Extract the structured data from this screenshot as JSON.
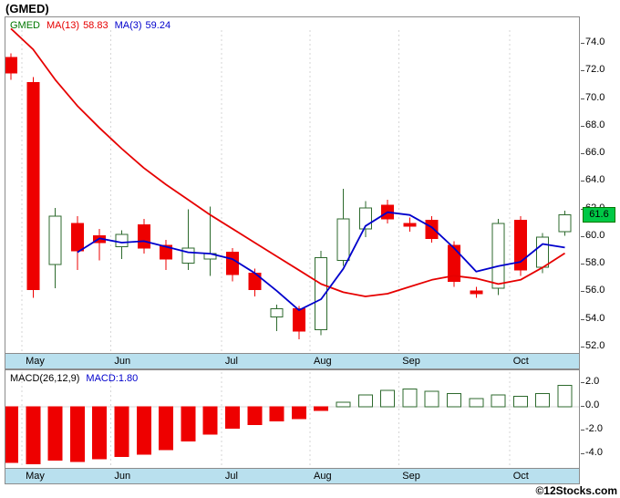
{
  "header": {
    "title": "(GMED)"
  },
  "legend": {
    "symbol": "GMED",
    "symbol_color": "#007700",
    "ma13_label": "MA(13)",
    "ma13_value": "58.83",
    "ma13_color": "#e60000",
    "ma3_label": "MA(3)",
    "ma3_value": "59.24",
    "ma3_color": "#0000cc"
  },
  "macd_legend": {
    "label": "MACD(26,12,9)",
    "label_color": "#000000",
    "value_label": "MACD:1.80",
    "value_color": "#0000cc"
  },
  "footer": {
    "copyright": "©12Stocks.com"
  },
  "band_color": "#b9e0ee",
  "chart_data": [
    {
      "type": "candlestick",
      "title": "(GMED)",
      "ylabel": "Price",
      "ylim": [
        51.5,
        75.5
      ],
      "y_ticks": [
        74,
        72,
        70,
        68,
        66,
        64,
        62,
        60,
        58,
        56,
        54,
        52
      ],
      "grid": "vertical-dashed-month-boundaries",
      "legend_position": "top-left",
      "last_price": 61.6,
      "last_price_label": "61.6",
      "badge_color": "#00c846",
      "up_color": "#2d6a2d",
      "down_color": "#ee0000",
      "months": [
        {
          "label": "May",
          "start_index": 1
        },
        {
          "label": "Jun",
          "start_index": 5
        },
        {
          "label": "Jul",
          "start_index": 10
        },
        {
          "label": "Aug",
          "start_index": 14
        },
        {
          "label": "Sep",
          "start_index": 18
        },
        {
          "label": "Oct",
          "start_index": 23
        }
      ],
      "candles": [
        {
          "o": 73.0,
          "h": 73.3,
          "l": 71.4,
          "c": 71.9,
          "dir": "down"
        },
        {
          "o": 71.2,
          "h": 71.6,
          "l": 55.6,
          "c": 56.2,
          "dir": "down"
        },
        {
          "o": 58.0,
          "h": 62.1,
          "l": 56.3,
          "c": 61.5,
          "dir": "up"
        },
        {
          "o": 61.0,
          "h": 61.5,
          "l": 57.6,
          "c": 59.0,
          "dir": "down"
        },
        {
          "o": 60.1,
          "h": 60.6,
          "l": 58.3,
          "c": 59.6,
          "dir": "down"
        },
        {
          "o": 59.3,
          "h": 60.5,
          "l": 58.4,
          "c": 60.2,
          "dir": "up"
        },
        {
          "o": 60.9,
          "h": 61.3,
          "l": 58.8,
          "c": 59.2,
          "dir": "down"
        },
        {
          "o": 59.4,
          "h": 59.8,
          "l": 57.6,
          "c": 58.4,
          "dir": "down"
        },
        {
          "o": 58.1,
          "h": 62.0,
          "l": 57.6,
          "c": 59.2,
          "dir": "up"
        },
        {
          "o": 58.4,
          "h": 62.2,
          "l": 57.2,
          "c": 58.8,
          "dir": "up"
        },
        {
          "o": 58.9,
          "h": 59.2,
          "l": 56.8,
          "c": 57.3,
          "dir": "down"
        },
        {
          "o": 57.4,
          "h": 57.7,
          "l": 55.7,
          "c": 56.2,
          "dir": "down"
        },
        {
          "o": 54.2,
          "h": 55.1,
          "l": 53.2,
          "c": 54.8,
          "dir": "up"
        },
        {
          "o": 54.8,
          "h": 55.0,
          "l": 52.6,
          "c": 53.2,
          "dir": "down"
        },
        {
          "o": 53.3,
          "h": 59.0,
          "l": 52.9,
          "c": 58.5,
          "dir": "up"
        },
        {
          "o": 58.3,
          "h": 63.5,
          "l": 57.9,
          "c": 61.3,
          "dir": "up"
        },
        {
          "o": 60.6,
          "h": 62.6,
          "l": 60.0,
          "c": 62.1,
          "dir": "up"
        },
        {
          "o": 62.3,
          "h": 62.7,
          "l": 61.0,
          "c": 61.3,
          "dir": "down"
        },
        {
          "o": 61.0,
          "h": 61.4,
          "l": 60.4,
          "c": 60.8,
          "dir": "down"
        },
        {
          "o": 61.2,
          "h": 61.5,
          "l": 59.6,
          "c": 59.9,
          "dir": "down"
        },
        {
          "o": 59.4,
          "h": 59.7,
          "l": 56.4,
          "c": 56.8,
          "dir": "down"
        },
        {
          "o": 56.1,
          "h": 56.4,
          "l": 55.6,
          "c": 55.9,
          "dir": "down"
        },
        {
          "o": 56.3,
          "h": 61.3,
          "l": 55.8,
          "c": 61.0,
          "dir": "up"
        },
        {
          "o": 61.2,
          "h": 61.5,
          "l": 57.2,
          "c": 57.6,
          "dir": "down"
        },
        {
          "o": 57.8,
          "h": 60.3,
          "l": 57.4,
          "c": 60.0,
          "dir": "up"
        },
        {
          "o": 60.4,
          "h": 61.9,
          "l": 60.1,
          "c": 61.6,
          "dir": "up"
        }
      ],
      "series": [
        {
          "name": "MA(13)",
          "color": "#e60000",
          "start_index": 0,
          "values": [
            75.1,
            73.6,
            71.4,
            69.5,
            67.9,
            66.4,
            65.0,
            63.8,
            62.7,
            61.6,
            60.6,
            59.6,
            58.6,
            57.6,
            56.6,
            56.0,
            55.7,
            55.9,
            56.4,
            56.9,
            57.2,
            57.0,
            56.6,
            56.9,
            57.8,
            58.83
          ]
        },
        {
          "name": "MA(3)",
          "color": "#0000cc",
          "start_index": 3,
          "values": [
            58.9,
            59.9,
            59.6,
            59.7,
            59.3,
            58.9,
            58.8,
            58.4,
            57.4,
            56.1,
            54.7,
            55.5,
            57.7,
            60.8,
            61.8,
            61.6,
            60.7,
            59.2,
            57.5,
            57.9,
            58.2,
            59.5,
            59.24
          ]
        }
      ]
    },
    {
      "type": "bar",
      "name": "MACD(26,12,9)",
      "last_value": 1.8,
      "ylim": [
        -5.2,
        2.6
      ],
      "y_ticks": [
        2,
        0,
        -2,
        -4
      ],
      "up_color": "#2d6a2d",
      "down_color": "#ee0000",
      "values": [
        -4.7,
        -4.8,
        -4.5,
        -4.6,
        -4.4,
        -4.2,
        -4.0,
        -3.6,
        -2.9,
        -2.3,
        -1.8,
        -1.5,
        -1.2,
        -1.0,
        -0.3,
        0.4,
        1.0,
        1.4,
        1.5,
        1.3,
        1.1,
        0.7,
        1.0,
        0.9,
        1.1,
        1.8
      ]
    }
  ]
}
